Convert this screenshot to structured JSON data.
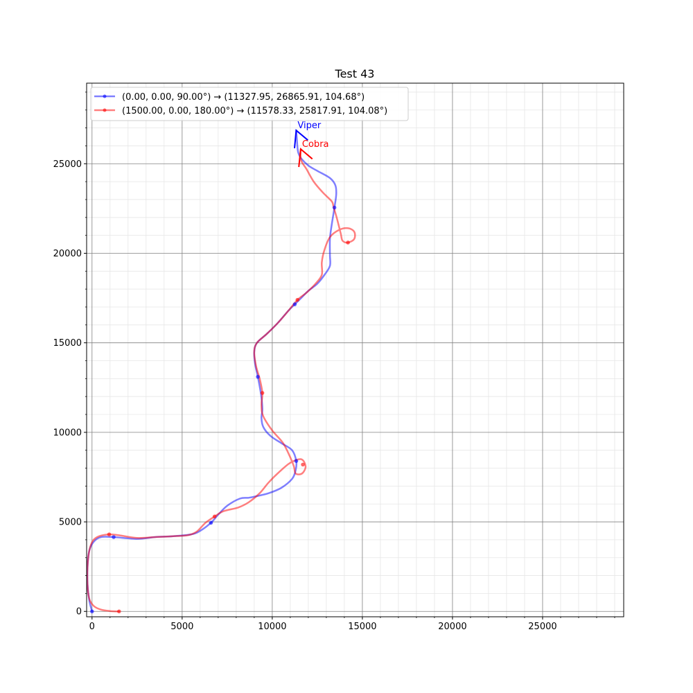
{
  "chart_data": {
    "type": "line",
    "title": "Test 43",
    "xlabel": "",
    "ylabel": "",
    "xlim": [
      -300,
      29500
    ],
    "ylim": [
      -300,
      29500
    ],
    "x_ticks": [
      0,
      5000,
      10000,
      15000,
      20000,
      25000
    ],
    "y_ticks": [
      0,
      5000,
      10000,
      15000,
      20000,
      25000
    ],
    "grid": true,
    "minor_grid": true,
    "legend_position": "top-left",
    "series": [
      {
        "name": "(0.00, 0.00, 90.00°) → (11327.95, 26865.91, 104.68°)",
        "color": "#0000ff",
        "points": [
          [
            0,
            0
          ],
          [
            -150,
            600
          ],
          [
            -250,
            1500
          ],
          [
            -250,
            2500
          ],
          [
            -150,
            3400
          ],
          [
            100,
            3900
          ],
          [
            500,
            4150
          ],
          [
            1200,
            4150
          ],
          [
            2500,
            4050
          ],
          [
            3500,
            4150
          ],
          [
            4500,
            4200
          ],
          [
            5500,
            4300
          ],
          [
            6000,
            4500
          ],
          [
            6600,
            4950
          ],
          [
            7000,
            5400
          ],
          [
            7500,
            5900
          ],
          [
            8200,
            6300
          ],
          [
            8700,
            6350
          ],
          [
            9200,
            6450
          ],
          [
            9800,
            6600
          ],
          [
            10500,
            6900
          ],
          [
            11100,
            7400
          ],
          [
            11300,
            7900
          ],
          [
            11330,
            8400
          ],
          [
            11100,
            9000
          ],
          [
            10500,
            9400
          ],
          [
            9900,
            9800
          ],
          [
            9500,
            10300
          ],
          [
            9400,
            10800
          ],
          [
            9450,
            11300
          ],
          [
            9380,
            12100
          ],
          [
            9200,
            13100
          ],
          [
            9050,
            13800
          ],
          [
            9000,
            14500
          ],
          [
            9150,
            15000
          ],
          [
            9700,
            15500
          ],
          [
            10300,
            16100
          ],
          [
            10900,
            16800
          ],
          [
            11250,
            17150
          ],
          [
            11600,
            17500
          ],
          [
            12000,
            17900
          ],
          [
            12500,
            18300
          ],
          [
            12900,
            18800
          ],
          [
            13200,
            19300
          ],
          [
            13200,
            19900
          ],
          [
            13200,
            20800
          ],
          [
            13300,
            21600
          ],
          [
            13450,
            22550
          ],
          [
            13550,
            23300
          ],
          [
            13500,
            23800
          ],
          [
            13200,
            24200
          ],
          [
            12500,
            24600
          ],
          [
            12000,
            24900
          ],
          [
            11600,
            25300
          ],
          [
            11450,
            25600
          ],
          [
            11400,
            25900
          ],
          [
            11330,
            26870
          ]
        ],
        "markers": [
          [
            0,
            0
          ],
          [
            1200,
            4150
          ],
          [
            6600,
            4950
          ],
          [
            11330,
            8400
          ],
          [
            9200,
            13100
          ],
          [
            11250,
            17150
          ],
          [
            13450,
            22550
          ]
        ],
        "end": [
          11327.95,
          26865.91
        ],
        "heading_deg": 104.68,
        "label": "Viper"
      },
      {
        "name": "(1500.00, 0.00, 180.00°) → (11578.33, 25817.91, 104.08°)",
        "color": "#ff0000",
        "points": [
          [
            1500,
            0
          ],
          [
            1000,
            20
          ],
          [
            500,
            100
          ],
          [
            100,
            300
          ],
          [
            -150,
            700
          ],
          [
            -250,
            1500
          ],
          [
            -250,
            2500
          ],
          [
            -150,
            3400
          ],
          [
            50,
            3950
          ],
          [
            400,
            4200
          ],
          [
            950,
            4300
          ],
          [
            1500,
            4250
          ],
          [
            2500,
            4100
          ],
          [
            3500,
            4150
          ],
          [
            4500,
            4200
          ],
          [
            5300,
            4250
          ],
          [
            5800,
            4450
          ],
          [
            6300,
            4950
          ],
          [
            6800,
            5300
          ],
          [
            7300,
            5600
          ],
          [
            8100,
            5800
          ],
          [
            8700,
            6100
          ],
          [
            9300,
            6600
          ],
          [
            9800,
            7200
          ],
          [
            10400,
            7800
          ],
          [
            11000,
            8300
          ],
          [
            11600,
            8500
          ],
          [
            11850,
            8100
          ],
          [
            11650,
            7700
          ],
          [
            11300,
            7700
          ],
          [
            11200,
            8100
          ],
          [
            11000,
            8600
          ],
          [
            10600,
            9400
          ],
          [
            10000,
            10100
          ],
          [
            9500,
            10900
          ],
          [
            9400,
            11500
          ],
          [
            9450,
            12200
          ],
          [
            9300,
            13000
          ],
          [
            9100,
            13700
          ],
          [
            9000,
            14500
          ],
          [
            9150,
            15000
          ],
          [
            9700,
            15500
          ],
          [
            10300,
            16100
          ],
          [
            10900,
            16800
          ],
          [
            11400,
            17400
          ],
          [
            11900,
            17800
          ],
          [
            12400,
            18300
          ],
          [
            12750,
            18800
          ],
          [
            12750,
            19500
          ],
          [
            12900,
            20200
          ],
          [
            13200,
            20900
          ],
          [
            13700,
            21300
          ],
          [
            14200,
            21400
          ],
          [
            14550,
            21200
          ],
          [
            14550,
            20800
          ],
          [
            14200,
            20600
          ],
          [
            13900,
            20700
          ],
          [
            13800,
            21100
          ],
          [
            13600,
            21900
          ],
          [
            13400,
            22600
          ],
          [
            13300,
            22900
          ],
          [
            12800,
            23400
          ],
          [
            12300,
            24000
          ],
          [
            11900,
            24700
          ],
          [
            11600,
            25200
          ],
          [
            11580,
            25820
          ]
        ],
        "markers": [
          [
            1500,
            0
          ],
          [
            950,
            4300
          ],
          [
            6800,
            5300
          ],
          [
            11700,
            8200
          ],
          [
            9450,
            12200
          ],
          [
            11400,
            17400
          ],
          [
            14200,
            20600
          ]
        ],
        "end": [
          11578.33,
          25817.91
        ],
        "heading_deg": 104.08,
        "label": "Cobra"
      }
    ]
  }
}
